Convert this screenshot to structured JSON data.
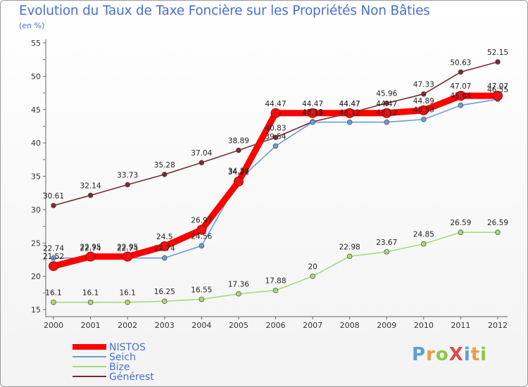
{
  "header": {
    "title": "Evolution du Taux de Taxe Foncière sur les Propriétés Non Bâties",
    "unit": "(en %)"
  },
  "logo": {
    "text": "ProXiti",
    "colors": [
      "#5aa0d8",
      "#e8a03c",
      "#8cc84a",
      "#d84c4c",
      "#5aa0d8",
      "#e8a03c",
      "#8cc84a"
    ]
  },
  "chart_data": {
    "type": "line",
    "x": [
      2000,
      2001,
      2002,
      2003,
      2004,
      2005,
      2006,
      2007,
      2008,
      2009,
      2010,
      2011,
      2012
    ],
    "ylim": [
      15,
      55
    ],
    "yticks": [
      15,
      20,
      25,
      30,
      35,
      40,
      45,
      50,
      55
    ],
    "grid": false,
    "legend_position": "bottom-left",
    "series": [
      {
        "name": "NISTOS",
        "color": "#ff0000",
        "values": [
          21.52,
          22.95,
          22.95,
          24.5,
          26.97,
          34.21,
          44.47,
          44.47,
          44.47,
          44.47,
          44.89,
          47.07,
          47.07
        ],
        "labels": [
          "21.52",
          "22.95",
          "22.95",
          "24.5",
          "26.97",
          "34.21",
          "44.47",
          "44.47",
          "44.47",
          "44.47",
          "44.89",
          "47.07",
          "47.07"
        ]
      },
      {
        "name": "Seich",
        "color": "#6a9fd4",
        "values": [
          22.74,
          22.74,
          22.74,
          22.74,
          24.56,
          34.38,
          39.54,
          43.12,
          43.12,
          43.12,
          43.53,
          45.64,
          46.55
        ],
        "labels": [
          "22.74",
          "22.74",
          "22.74",
          "22.74",
          "24.56",
          "34.38",
          "39.54",
          "43.12",
          "43.12",
          "43.12",
          "43.53",
          "45.64",
          "46.55"
        ]
      },
      {
        "name": "Bize",
        "color": "#a8dc78",
        "values": [
          16.1,
          16.1,
          16.1,
          16.25,
          16.55,
          17.36,
          17.88,
          20,
          22.98,
          23.67,
          24.85,
          26.59,
          26.59
        ],
        "labels": [
          "16.1",
          "16.1",
          "16.1",
          "16.25",
          "16.55",
          "17.36",
          "17.88",
          "20",
          "22.98",
          "23.67",
          "24.85",
          "26.59",
          "26.59"
        ]
      },
      {
        "name": "Générest",
        "color": "#7a2a32",
        "values": [
          30.61,
          32.14,
          33.73,
          35.28,
          37.04,
          38.89,
          40.83,
          43.18,
          44.47,
          45.96,
          47.33,
          50.63,
          52.15
        ],
        "labels": [
          "30.61",
          "32.14",
          "33.73",
          "35.28",
          "37.04",
          "38.89",
          "40.83",
          "43.18",
          "44.47",
          "45.96",
          "47.33",
          "50.63",
          "52.15"
        ]
      }
    ]
  }
}
